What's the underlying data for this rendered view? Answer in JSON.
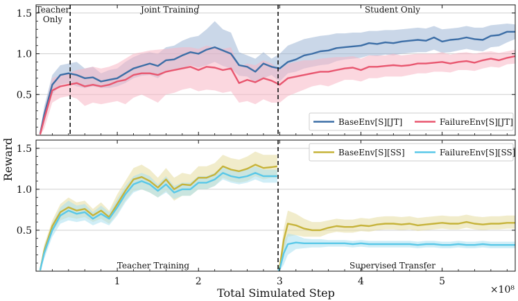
{
  "chart_data": [
    {
      "type": "line",
      "panel": "top",
      "xlim": [
        0,
        5.9
      ],
      "ylim": [
        0,
        1.6
      ],
      "yticks": [
        0.5,
        1.0,
        1.5
      ],
      "ytick_labels": [
        "0.5",
        "1.0",
        "1.5"
      ],
      "grid": true,
      "phase_labels": [
        "Teacher",
        "Only",
        "Joint Training",
        "Student Only"
      ],
      "phase_boundaries": [
        0.42,
        2.98
      ],
      "legend_position": "bottom-right",
      "series": [
        {
          "name": "BaseEnv[S][JT]",
          "color": "#3c6ea6",
          "band_color": "#9fb6d6",
          "x": [
            0.05,
            0.1,
            0.2,
            0.3,
            0.4,
            0.5,
            0.6,
            0.7,
            0.8,
            0.9,
            1.0,
            1.1,
            1.2,
            1.3,
            1.4,
            1.5,
            1.6,
            1.7,
            1.8,
            1.9,
            2.0,
            2.1,
            2.2,
            2.3,
            2.4,
            2.5,
            2.6,
            2.7,
            2.8,
            2.9,
            3.0,
            3.1,
            3.2,
            3.3,
            3.4,
            3.5,
            3.6,
            3.7,
            3.8,
            3.9,
            4.0,
            4.1,
            4.2,
            4.3,
            4.4,
            4.5,
            4.6,
            4.7,
            4.8,
            4.9,
            5.0,
            5.1,
            5.2,
            5.3,
            5.4,
            5.5,
            5.6,
            5.7,
            5.8,
            5.9
          ],
          "y": [
            0.02,
            0.25,
            0.62,
            0.74,
            0.76,
            0.74,
            0.7,
            0.71,
            0.66,
            0.68,
            0.7,
            0.76,
            0.82,
            0.85,
            0.88,
            0.85,
            0.92,
            0.93,
            0.98,
            1.02,
            1.0,
            1.05,
            1.08,
            1.04,
            1.0,
            0.86,
            0.84,
            0.78,
            0.88,
            0.84,
            0.82,
            0.9,
            0.93,
            0.98,
            1.0,
            1.03,
            1.04,
            1.07,
            1.08,
            1.09,
            1.1,
            1.13,
            1.12,
            1.14,
            1.13,
            1.15,
            1.16,
            1.17,
            1.16,
            1.2,
            1.15,
            1.17,
            1.18,
            1.2,
            1.18,
            1.17,
            1.22,
            1.23,
            1.27,
            1.27
          ],
          "lower": [
            0.0,
            0.15,
            0.5,
            0.62,
            0.64,
            0.6,
            0.58,
            0.6,
            0.58,
            0.58,
            0.6,
            0.64,
            0.7,
            0.73,
            0.74,
            0.7,
            0.78,
            0.8,
            0.82,
            0.86,
            0.83,
            0.86,
            0.9,
            0.85,
            0.82,
            0.73,
            0.72,
            0.64,
            0.7,
            0.74,
            0.66,
            0.76,
            0.78,
            0.82,
            0.84,
            0.86,
            0.87,
            0.91,
            0.93,
            0.94,
            0.95,
            0.98,
            0.97,
            0.99,
            0.98,
            1.0,
            1.01,
            1.02,
            1.02,
            1.05,
            1.01,
            1.02,
            1.04,
            1.06,
            1.04,
            1.03,
            1.08,
            1.09,
            1.14,
            1.18
          ],
          "upper": [
            0.04,
            0.35,
            0.74,
            0.86,
            0.88,
            0.9,
            0.82,
            0.84,
            0.76,
            0.8,
            0.82,
            0.9,
            0.96,
            1.0,
            1.02,
            1.0,
            1.08,
            1.1,
            1.16,
            1.2,
            1.22,
            1.3,
            1.4,
            1.3,
            1.26,
            1.02,
            0.98,
            0.94,
            1.02,
            0.94,
            1.0,
            1.1,
            1.14,
            1.18,
            1.2,
            1.22,
            1.23,
            1.25,
            1.25,
            1.26,
            1.26,
            1.28,
            1.28,
            1.29,
            1.29,
            1.3,
            1.31,
            1.32,
            1.31,
            1.34,
            1.3,
            1.31,
            1.32,
            1.34,
            1.32,
            1.32,
            1.35,
            1.36,
            1.37,
            1.36
          ]
        },
        {
          "name": "FailureEnv[S][JT]",
          "color": "#e8566f",
          "band_color": "#f7b7c4",
          "x": [
            0.05,
            0.1,
            0.2,
            0.3,
            0.4,
            0.5,
            0.6,
            0.7,
            0.8,
            0.9,
            1.0,
            1.1,
            1.2,
            1.3,
            1.4,
            1.5,
            1.6,
            1.7,
            1.8,
            1.9,
            2.0,
            2.1,
            2.2,
            2.3,
            2.4,
            2.5,
            2.6,
            2.7,
            2.8,
            2.9,
            3.0,
            3.1,
            3.2,
            3.3,
            3.4,
            3.5,
            3.6,
            3.7,
            3.8,
            3.9,
            4.0,
            4.1,
            4.2,
            4.3,
            4.4,
            4.5,
            4.6,
            4.7,
            4.8,
            4.9,
            5.0,
            5.1,
            5.2,
            5.3,
            5.4,
            5.5,
            5.6,
            5.7,
            5.8,
            5.9
          ],
          "y": [
            0.01,
            0.2,
            0.55,
            0.6,
            0.62,
            0.64,
            0.6,
            0.62,
            0.6,
            0.62,
            0.66,
            0.68,
            0.74,
            0.76,
            0.76,
            0.74,
            0.78,
            0.8,
            0.82,
            0.84,
            0.8,
            0.84,
            0.83,
            0.8,
            0.82,
            0.64,
            0.68,
            0.65,
            0.7,
            0.67,
            0.62,
            0.7,
            0.72,
            0.74,
            0.76,
            0.78,
            0.78,
            0.8,
            0.82,
            0.83,
            0.8,
            0.84,
            0.84,
            0.85,
            0.86,
            0.85,
            0.86,
            0.88,
            0.88,
            0.89,
            0.9,
            0.88,
            0.9,
            0.91,
            0.89,
            0.92,
            0.94,
            0.92,
            0.95,
            0.97
          ],
          "lower": [
            0.0,
            0.08,
            0.4,
            0.46,
            0.48,
            0.45,
            0.36,
            0.4,
            0.38,
            0.4,
            0.42,
            0.38,
            0.46,
            0.5,
            0.45,
            0.4,
            0.5,
            0.52,
            0.56,
            0.58,
            0.54,
            0.56,
            0.55,
            0.52,
            0.54,
            0.4,
            0.42,
            0.38,
            0.44,
            0.4,
            0.4,
            0.48,
            0.52,
            0.56,
            0.6,
            0.62,
            0.6,
            0.64,
            0.68,
            0.68,
            0.66,
            0.7,
            0.7,
            0.72,
            0.72,
            0.72,
            0.74,
            0.76,
            0.76,
            0.78,
            0.78,
            0.77,
            0.8,
            0.8,
            0.79,
            0.82,
            0.84,
            0.83,
            0.87,
            0.88
          ],
          "upper": [
            0.03,
            0.3,
            0.7,
            0.74,
            0.76,
            0.8,
            0.82,
            0.84,
            0.82,
            0.84,
            0.88,
            0.94,
            1.0,
            1.02,
            1.04,
            1.05,
            1.06,
            1.07,
            1.08,
            1.08,
            1.06,
            1.1,
            1.08,
            1.06,
            1.08,
            0.84,
            0.88,
            0.86,
            0.92,
            0.88,
            0.8,
            0.88,
            0.9,
            0.92,
            0.92,
            0.94,
            0.95,
            0.96,
            0.96,
            0.97,
            0.94,
            0.98,
            0.98,
            0.98,
            1.0,
            0.98,
            0.99,
            1.0,
            1.0,
            1.0,
            1.02,
            0.99,
            1.01,
            1.02,
            1.0,
            1.02,
            1.03,
            1.01,
            1.03,
            1.05
          ]
        }
      ]
    },
    {
      "type": "line",
      "panel": "bottom",
      "xlim": [
        0,
        5.9
      ],
      "ylim": [
        0,
        1.6
      ],
      "yticks": [
        0.5,
        1.0,
        1.5
      ],
      "ytick_labels": [
        "0.5",
        "1.0",
        "1.5"
      ],
      "xticks": [
        1,
        2,
        3,
        4,
        5
      ],
      "xtick_labels": [
        "1",
        "2",
        "3",
        "4",
        "5"
      ],
      "xlabel": "Total Simulated Step",
      "ylabel": "Reward",
      "x_offset_label": "×10⁸",
      "grid": true,
      "phase_labels": [
        "Teacher Training",
        "Supervised Transfer"
      ],
      "phase_boundaries": [
        2.98
      ],
      "legend_position": "top-right",
      "series": [
        {
          "name": "BaseEnv[S][SS]",
          "color": "#c6b33a",
          "band_color": "#e6dca0",
          "x": [
            0.05,
            0.1,
            0.2,
            0.3,
            0.4,
            0.5,
            0.6,
            0.7,
            0.8,
            0.9,
            1.0,
            1.1,
            1.2,
            1.3,
            1.4,
            1.5,
            1.6,
            1.7,
            1.8,
            1.9,
            2.0,
            2.1,
            2.2,
            2.3,
            2.4,
            2.5,
            2.6,
            2.7,
            2.8,
            2.9,
            2.97,
            2.98,
            3.0,
            3.05,
            3.1,
            3.2,
            3.3,
            3.4,
            3.5,
            3.6,
            3.7,
            3.8,
            3.9,
            4.0,
            4.1,
            4.2,
            4.3,
            4.4,
            4.5,
            4.6,
            4.7,
            4.8,
            4.9,
            5.0,
            5.1,
            5.2,
            5.3,
            5.4,
            5.5,
            5.6,
            5.7,
            5.8,
            5.9
          ],
          "y": [
            0.01,
            0.25,
            0.55,
            0.72,
            0.78,
            0.74,
            0.76,
            0.68,
            0.74,
            0.66,
            0.82,
            0.98,
            1.12,
            1.15,
            1.1,
            1.02,
            1.12,
            1.0,
            1.06,
            1.05,
            1.14,
            1.14,
            1.18,
            1.28,
            1.24,
            1.22,
            1.25,
            1.3,
            1.26,
            1.27,
            1.28,
            0.02,
            0.05,
            0.38,
            0.58,
            0.56,
            0.52,
            0.5,
            0.5,
            0.53,
            0.55,
            0.54,
            0.54,
            0.56,
            0.55,
            0.57,
            0.58,
            0.58,
            0.57,
            0.58,
            0.56,
            0.57,
            0.58,
            0.59,
            0.58,
            0.58,
            0.6,
            0.58,
            0.57,
            0.58,
            0.58,
            0.59,
            0.59
          ],
          "lower": [
            0.0,
            0.18,
            0.48,
            0.62,
            0.66,
            0.64,
            0.66,
            0.6,
            0.64,
            0.58,
            0.7,
            0.86,
            0.98,
            1.0,
            0.96,
            0.9,
            0.98,
            0.86,
            0.92,
            0.92,
            1.0,
            1.0,
            1.04,
            1.14,
            1.1,
            1.08,
            1.1,
            1.16,
            1.12,
            1.14,
            1.14,
            0.0,
            0.0,
            0.2,
            0.42,
            0.44,
            0.42,
            0.42,
            0.42,
            0.46,
            0.48,
            0.47,
            0.47,
            0.49,
            0.48,
            0.5,
            0.51,
            0.51,
            0.5,
            0.51,
            0.49,
            0.5,
            0.51,
            0.52,
            0.51,
            0.51,
            0.53,
            0.51,
            0.5,
            0.51,
            0.51,
            0.52,
            0.52
          ],
          "upper": [
            0.02,
            0.32,
            0.62,
            0.82,
            0.9,
            0.84,
            0.86,
            0.76,
            0.84,
            0.74,
            0.94,
            1.1,
            1.26,
            1.3,
            1.24,
            1.14,
            1.26,
            1.14,
            1.2,
            1.18,
            1.28,
            1.28,
            1.32,
            1.42,
            1.38,
            1.36,
            1.4,
            1.46,
            1.42,
            1.42,
            1.42,
            0.05,
            0.1,
            0.52,
            0.74,
            0.7,
            0.64,
            0.6,
            0.6,
            0.62,
            0.64,
            0.63,
            0.63,
            0.65,
            0.64,
            0.66,
            0.67,
            0.67,
            0.66,
            0.67,
            0.65,
            0.66,
            0.67,
            0.68,
            0.67,
            0.67,
            0.69,
            0.67,
            0.66,
            0.67,
            0.67,
            0.68,
            0.68
          ]
        },
        {
          "name": "FailureEnv[S][SS]",
          "color": "#5ac8e8",
          "band_color": "#a9e0f0",
          "x": [
            0.05,
            0.1,
            0.2,
            0.3,
            0.4,
            0.5,
            0.6,
            0.7,
            0.8,
            0.9,
            1.0,
            1.1,
            1.2,
            1.3,
            1.4,
            1.5,
            1.6,
            1.7,
            1.8,
            1.9,
            2.0,
            2.1,
            2.2,
            2.3,
            2.4,
            2.5,
            2.6,
            2.7,
            2.8,
            2.9,
            2.97,
            2.98,
            3.0,
            3.05,
            3.1,
            3.2,
            3.3,
            3.4,
            3.5,
            3.6,
            3.7,
            3.8,
            3.9,
            4.0,
            4.1,
            4.2,
            4.3,
            4.4,
            4.5,
            4.6,
            4.7,
            4.8,
            4.9,
            5.0,
            5.1,
            5.2,
            5.3,
            5.4,
            5.5,
            5.6,
            5.7,
            5.8,
            5.9
          ],
          "y": [
            0.01,
            0.22,
            0.5,
            0.68,
            0.74,
            0.7,
            0.72,
            0.64,
            0.7,
            0.64,
            0.78,
            0.94,
            1.06,
            1.1,
            1.06,
            0.98,
            1.06,
            0.96,
            1.0,
            1.0,
            1.08,
            1.08,
            1.12,
            1.2,
            1.16,
            1.14,
            1.16,
            1.2,
            1.16,
            1.16,
            1.16,
            0.01,
            0.03,
            0.22,
            0.33,
            0.35,
            0.34,
            0.34,
            0.34,
            0.34,
            0.34,
            0.34,
            0.33,
            0.34,
            0.33,
            0.33,
            0.33,
            0.33,
            0.33,
            0.33,
            0.32,
            0.33,
            0.33,
            0.32,
            0.32,
            0.33,
            0.32,
            0.32,
            0.33,
            0.32,
            0.32,
            0.32,
            0.32
          ],
          "lower": [
            0.0,
            0.15,
            0.42,
            0.58,
            0.62,
            0.6,
            0.62,
            0.56,
            0.6,
            0.56,
            0.68,
            0.84,
            0.96,
            1.0,
            0.96,
            0.9,
            0.96,
            0.88,
            0.92,
            0.92,
            1.0,
            1.0,
            1.04,
            1.12,
            1.08,
            1.06,
            1.08,
            1.12,
            1.08,
            1.08,
            1.08,
            0.0,
            0.0,
            0.08,
            0.2,
            0.27,
            0.28,
            0.29,
            0.29,
            0.3,
            0.3,
            0.3,
            0.29,
            0.3,
            0.29,
            0.29,
            0.29,
            0.29,
            0.29,
            0.29,
            0.28,
            0.29,
            0.29,
            0.28,
            0.28,
            0.29,
            0.28,
            0.28,
            0.29,
            0.28,
            0.28,
            0.28,
            0.28
          ],
          "upper": [
            0.02,
            0.3,
            0.58,
            0.78,
            0.86,
            0.8,
            0.82,
            0.72,
            0.8,
            0.72,
            0.88,
            1.04,
            1.16,
            1.2,
            1.16,
            1.06,
            1.16,
            1.04,
            1.08,
            1.08,
            1.16,
            1.16,
            1.2,
            1.28,
            1.24,
            1.22,
            1.24,
            1.28,
            1.24,
            1.24,
            1.24,
            0.02,
            0.08,
            0.36,
            0.46,
            0.44,
            0.4,
            0.39,
            0.39,
            0.38,
            0.38,
            0.38,
            0.37,
            0.38,
            0.37,
            0.37,
            0.37,
            0.37,
            0.37,
            0.37,
            0.36,
            0.37,
            0.37,
            0.36,
            0.36,
            0.37,
            0.36,
            0.36,
            0.37,
            0.36,
            0.36,
            0.36,
            0.36
          ]
        }
      ]
    }
  ]
}
